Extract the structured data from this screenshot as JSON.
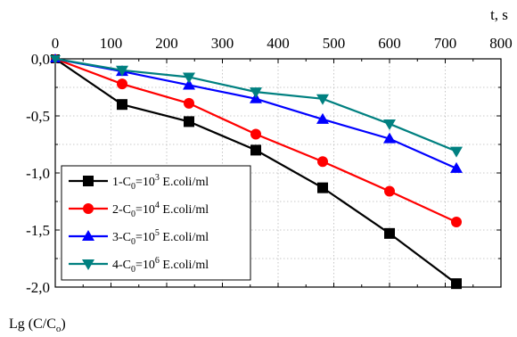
{
  "chart_data": {
    "type": "line",
    "xlabel": "t, s",
    "ylabel": "Lg (C/C",
    "ylabel_sub": "o",
    "ylabel_close": ")",
    "xlim": [
      0,
      800
    ],
    "ylim": [
      -2.0,
      0.0
    ],
    "x_ticks": [
      0,
      100,
      200,
      300,
      400,
      500,
      600,
      700,
      800
    ],
    "x_tick_labels": [
      "0",
      "100",
      "200",
      "300",
      "400",
      "500",
      "600",
      "700",
      "800"
    ],
    "y_ticks": [
      0.0,
      -0.5,
      -1.0,
      -1.5,
      -2.0
    ],
    "y_tick_labels": [
      "0,0",
      "-0,5",
      "-1,0",
      "-1,5",
      "-2,0"
    ],
    "grid": true,
    "x_axis_position": "top",
    "legend_position": "lower-left",
    "series": [
      {
        "legend": {
          "pre": "1-C",
          "sub": "0",
          "mid": "=10",
          "sup": "3",
          "post": " E.coli/ml"
        },
        "color": "#000000",
        "marker": "square",
        "x": [
          0,
          120,
          240,
          360,
          480,
          600,
          720
        ],
        "y": [
          0.0,
          -0.4,
          -0.55,
          -0.8,
          -1.13,
          -1.53,
          -1.97
        ]
      },
      {
        "legend": {
          "pre": "2-C",
          "sub": "0",
          "mid": "=10",
          "sup": "4",
          "post": " E.coli/ml"
        },
        "color": "#ff0000",
        "marker": "circle",
        "x": [
          0,
          120,
          240,
          360,
          480,
          600,
          720
        ],
        "y": [
          0.0,
          -0.22,
          -0.39,
          -0.66,
          -0.9,
          -1.16,
          -1.43
        ]
      },
      {
        "legend": {
          "pre": "3-C",
          "sub": "0",
          "mid": "=10",
          "sup": "5",
          "post": " E.coli/ml"
        },
        "color": "#0000ff",
        "marker": "triangle-up",
        "x": [
          0,
          120,
          240,
          360,
          480,
          600,
          720
        ],
        "y": [
          0.0,
          -0.11,
          -0.23,
          -0.35,
          -0.53,
          -0.7,
          -0.96
        ]
      },
      {
        "legend": {
          "pre": "4-C",
          "sub": "0",
          "mid": "=10",
          "sup": "6",
          "post": " E.coli/ml"
        },
        "color": "#008080",
        "marker": "triangle-down",
        "x": [
          0,
          120,
          240,
          360,
          480,
          600,
          720
        ],
        "y": [
          0.0,
          -0.1,
          -0.16,
          -0.29,
          -0.35,
          -0.57,
          -0.81
        ]
      }
    ]
  }
}
